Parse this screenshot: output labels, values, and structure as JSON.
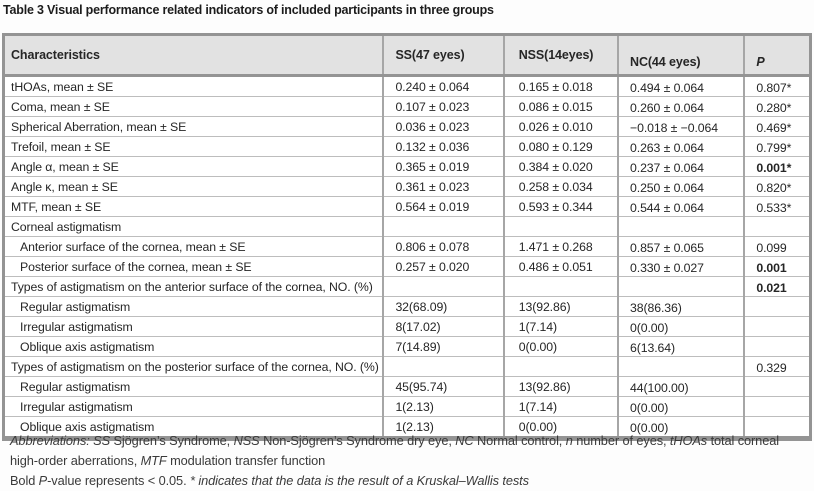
{
  "title": "Table 3 Visual performance related indicators of included participants in three groups",
  "table": {
    "columns": [
      "Characteristics",
      "SS(47 eyes)",
      "NSS(14eyes)",
      "NC(44 eyes)",
      "P"
    ],
    "rows": [
      {
        "label": "tHOAs, mean ± SE",
        "indent": false,
        "ss": "0.240 ± 0.064",
        "nss": "0.165 ± 0.018",
        "nc": "0.494 ± 0.064",
        "p": "0.807*",
        "pBold": false
      },
      {
        "label": "Coma, mean ± SE",
        "indent": false,
        "ss": "0.107 ± 0.023",
        "nss": "0.086 ± 0.015",
        "nc": "0.260 ± 0.064",
        "p": "0.280*",
        "pBold": false
      },
      {
        "label": "Spherical Aberration, mean ± SE",
        "indent": false,
        "ss": "0.036 ± 0.023",
        "nss": "0.026 ± 0.010",
        "nc": "−0.018 ± −0.064",
        "p": "0.469*",
        "pBold": false
      },
      {
        "label": "Trefoil, mean ± SE",
        "indent": false,
        "ss": "0.132 ± 0.036",
        "nss": "0.080 ± 0.129",
        "nc": "0.263 ± 0.064",
        "p": "0.799*",
        "pBold": false
      },
      {
        "label": "Angle α, mean ± SE",
        "indent": false,
        "ss": "0.365 ± 0.019",
        "nss": "0.384 ± 0.020",
        "nc": "0.237 ± 0.064",
        "p": "0.001*",
        "pBold": true
      },
      {
        "label": "Angle κ, mean ± SE",
        "indent": false,
        "ss": "0.361 ± 0.023",
        "nss": "0.258 ± 0.034",
        "nc": "0.250 ± 0.064",
        "p": "0.820*",
        "pBold": false
      },
      {
        "label": "MTF, mean ± SE",
        "indent": false,
        "ss": "0.564 ± 0.019",
        "nss": "0.593 ± 0.344",
        "nc": "0.544 ± 0.064",
        "p": "0.533*",
        "pBold": false
      },
      {
        "label": "Corneal astigmatism",
        "indent": false,
        "ss": "",
        "nss": "",
        "nc": "",
        "p": "",
        "pBold": false
      },
      {
        "label": "Anterior surface of the cornea, mean ± SE",
        "indent": true,
        "ss": "0.806 ± 0.078",
        "nss": "1.471 ± 0.268",
        "nc": "0.857 ± 0.065",
        "p": "0.099",
        "pBold": false
      },
      {
        "label": "Posterior surface of the cornea, mean ± SE",
        "indent": true,
        "ss": "0.257 ± 0.020",
        "nss": "0.486 ± 0.051",
        "nc": "0.330 ± 0.027",
        "p": "0.001",
        "pBold": true
      },
      {
        "label": "Types of astigmatism on the anterior surface of the cornea, NO. (%)",
        "indent": false,
        "ss": "",
        "nss": "",
        "nc": "",
        "p": "0.021",
        "pBold": true
      },
      {
        "label": "Regular astigmatism",
        "indent": true,
        "ss": "32(68.09)",
        "nss": "13(92.86)",
        "nc": "38(86.36)",
        "p": "",
        "pBold": false
      },
      {
        "label": "Irregular astigmatism",
        "indent": true,
        "ss": "8(17.02)",
        "nss": "1(7.14)",
        "nc": "0(0.00)",
        "p": "",
        "pBold": false
      },
      {
        "label": "Oblique axis astigmatism",
        "indent": true,
        "ss": "7(14.89)",
        "nss": "0(0.00)",
        "nc": "6(13.64)",
        "p": "",
        "pBold": false
      },
      {
        "label": "Types of astigmatism on the posterior surface of the cornea, NO. (%)",
        "indent": false,
        "ss": "",
        "nss": "",
        "nc": "",
        "p": "0.329",
        "pBold": false
      },
      {
        "label": "Regular astigmatism",
        "indent": true,
        "ss": "45(95.74)",
        "nss": "13(92.86)",
        "nc": "44(100.00)",
        "p": "",
        "pBold": false
      },
      {
        "label": "Irregular astigmatism",
        "indent": true,
        "ss": "1(2.13)",
        "nss": "1(7.14)",
        "nc": "0(0.00)",
        "p": "",
        "pBold": false
      },
      {
        "label": "Oblique axis astigmatism",
        "indent": true,
        "ss": "1(2.13)",
        "nss": "0(0.00)",
        "nc": "0(0.00)",
        "p": "",
        "pBold": false
      }
    ]
  },
  "footnotes": {
    "abbreviations": [
      {
        "t": "Abbreviations: ",
        "i": true
      },
      {
        "t": "SS",
        "i": true
      },
      {
        "t": " Sjögren’s Syndrome, ",
        "i": false
      },
      {
        "t": "NSS",
        "i": true
      },
      {
        "t": " Non-Sjögren’s Syndrome dry eye, ",
        "i": false
      },
      {
        "t": "NC",
        "i": true
      },
      {
        "t": " Normal control, ",
        "i": false
      },
      {
        "t": "n",
        "i": true
      },
      {
        "t": " number of eyes, ",
        "i": false
      },
      {
        "t": "tHOAs",
        "i": true
      },
      {
        "t": " total corneal high-order aberrations, ",
        "i": false
      },
      {
        "t": "MTF",
        "i": true
      },
      {
        "t": " modulation transfer function",
        "i": false
      }
    ],
    "pvalue": [
      {
        "t": "Bold ",
        "i": false
      },
      {
        "t": "P",
        "i": true
      },
      {
        "t": "-value represents < 0.05. ",
        "i": false
      },
      {
        "t": "* indicates that the data is the result of a Kruskal–Wallis tests",
        "i": true
      }
    ]
  }
}
